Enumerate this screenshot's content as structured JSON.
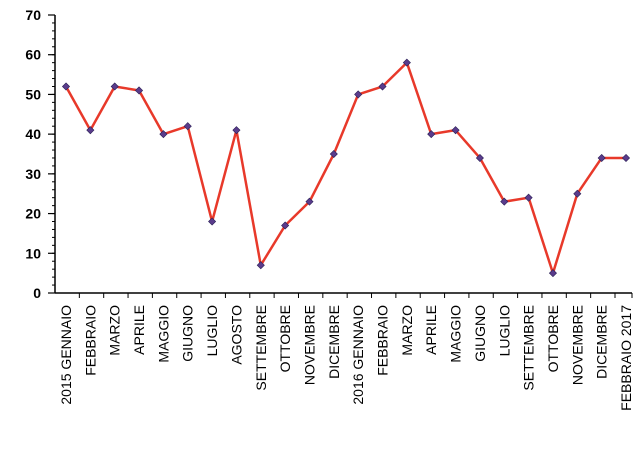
{
  "chart_data": {
    "type": "line",
    "title": "",
    "xlabel": "",
    "ylabel": "",
    "ylim": [
      0,
      70
    ],
    "yticks": [
      0,
      10,
      20,
      30,
      40,
      50,
      60,
      70
    ],
    "grid": false,
    "legend": "none",
    "categories": [
      "2015 GENNAIO",
      "FEBBRAIO",
      "MARZO",
      "APRILE",
      "MAGGIO",
      "GIUGNO",
      "LUGLIO",
      "AGOSTO",
      "SETTEMBRE",
      "OTTOBRE",
      "NOVEMBRE",
      "DICEMBRE",
      "2016 GENNAIO",
      "FEBBRAIO",
      "MARZO",
      "APRILE",
      "MAGGIO",
      "GIUGNO",
      "LUGLIO",
      "SETTEMBRE",
      "OTTOBRE",
      "NOVEMBRE",
      "DICEMBRE",
      "FEBBRAIO 2017"
    ],
    "series": [
      {
        "values": [
          52,
          41,
          52,
          51,
          40,
          42,
          18,
          41,
          7,
          17,
          23,
          35,
          50,
          52,
          58,
          40,
          41,
          34,
          23,
          24,
          5,
          25,
          34,
          34
        ],
        "line_color": "#e8392a",
        "marker_color": "#5a3c8c"
      }
    ]
  }
}
